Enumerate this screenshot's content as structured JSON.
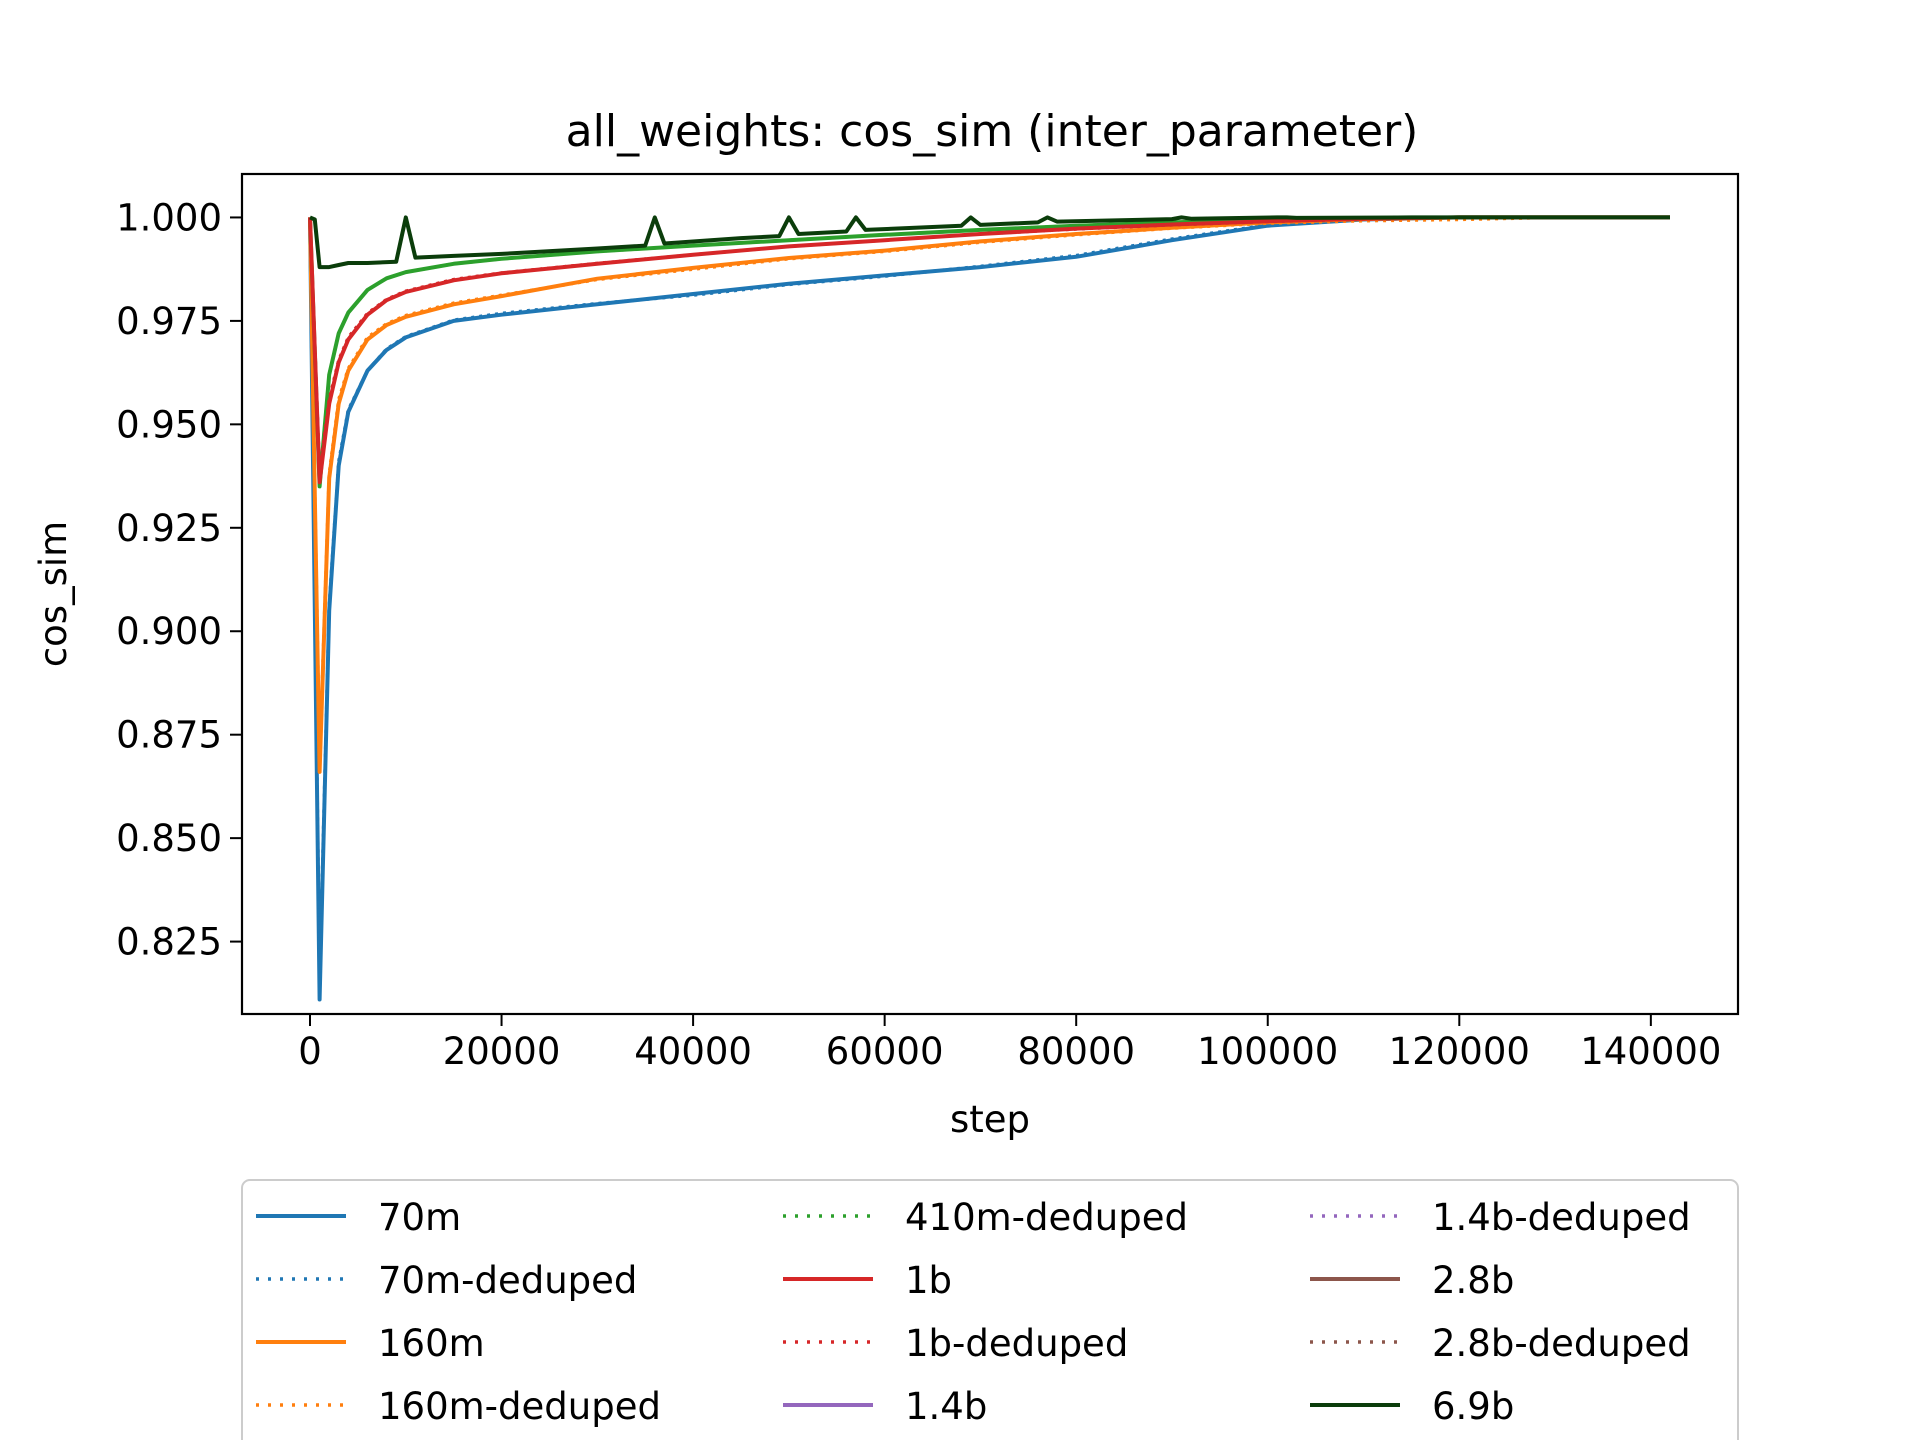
{
  "chart_data": {
    "type": "line",
    "title": "all_weights: cos_sim (inter_parameter)",
    "xlabel": "step",
    "ylabel": "cos_sim",
    "xlim": [
      -7100,
      149100
    ],
    "ylim": [
      0.8075,
      1.0105
    ],
    "x_ticks": [
      0,
      20000,
      40000,
      60000,
      80000,
      100000,
      120000,
      140000
    ],
    "y_ticks": [
      0.825,
      0.85,
      0.875,
      0.9,
      0.925,
      0.95,
      0.975,
      1.0
    ],
    "x_tick_labels": [
      "0",
      "20000",
      "40000",
      "60000",
      "80000",
      "100000",
      "120000",
      "140000"
    ],
    "y_tick_labels": [
      "0.825",
      "0.850",
      "0.875",
      "0.900",
      "0.925",
      "0.950",
      "0.975",
      "1.000"
    ],
    "grid": false,
    "legend_position": "below plot, 3 columns",
    "series": [
      {
        "name": "70m",
        "color": "#1f77b4",
        "style": "solid",
        "x": [
          0,
          1000,
          2000,
          3000,
          4000,
          6000,
          8000,
          10000,
          15000,
          20000,
          30000,
          40000,
          50000,
          60000,
          70000,
          80000,
          90000,
          100000,
          110000,
          120000,
          130000,
          142000
        ],
        "y": [
          1.0,
          0.811,
          0.905,
          0.94,
          0.953,
          0.963,
          0.968,
          0.971,
          0.975,
          0.9765,
          0.979,
          0.9815,
          0.984,
          0.986,
          0.988,
          0.9905,
          0.9945,
          0.998,
          0.9995,
          1.0,
          1.0,
          1.0
        ]
      },
      {
        "name": "70m-deduped",
        "color": "#1f77b4",
        "style": "dotted",
        "x": [
          0,
          1000,
          2000,
          3000,
          4000,
          6000,
          8000,
          10000,
          15000,
          20000,
          30000,
          40000,
          50000,
          60000,
          70000,
          80000,
          90000,
          100000,
          110000,
          120000,
          130000,
          142000
        ],
        "y": [
          1.0,
          0.815,
          0.906,
          0.941,
          0.9535,
          0.963,
          0.9682,
          0.9712,
          0.9752,
          0.9768,
          0.9792,
          0.9812,
          0.9838,
          0.9858,
          0.9882,
          0.9908,
          0.9948,
          0.9982,
          0.9996,
          1.0,
          1.0,
          1.0
        ]
      },
      {
        "name": "160m",
        "color": "#ff7f0e",
        "style": "solid",
        "x": [
          0,
          1000,
          2000,
          3000,
          4000,
          6000,
          8000,
          10000,
          15000,
          20000,
          30000,
          40000,
          50000,
          60000,
          70000,
          80000,
          90000,
          100000,
          110000,
          120000,
          130000,
          142000
        ],
        "y": [
          1.0,
          0.866,
          0.937,
          0.955,
          0.963,
          0.9705,
          0.974,
          0.976,
          0.979,
          0.981,
          0.9852,
          0.9878,
          0.9902,
          0.992,
          0.9942,
          0.996,
          0.9975,
          0.9988,
          0.9996,
          1.0,
          1.0,
          1.0
        ]
      },
      {
        "name": "160m-deduped",
        "color": "#ff7f0e",
        "style": "dotted",
        "x": [
          0,
          1000,
          2000,
          3000,
          4000,
          6000,
          8000,
          10000,
          15000,
          20000,
          30000,
          40000,
          50000,
          60000,
          70000,
          80000,
          90000,
          100000,
          110000,
          120000,
          130000,
          142000
        ],
        "y": [
          1.0,
          0.868,
          0.938,
          0.956,
          0.9635,
          0.971,
          0.9743,
          0.9763,
          0.9793,
          0.9812,
          0.985,
          0.9875,
          0.99,
          0.9918,
          0.994,
          0.9958,
          0.9974,
          0.9986,
          0.9992,
          0.9995,
          1.0,
          1.0
        ]
      },
      {
        "name": "410m-deduped",
        "color": "#2ca02c",
        "style": "dotted",
        "x": [
          0,
          1000,
          2000,
          3000,
          4000,
          6000,
          8000,
          10000,
          15000,
          20000,
          30000,
          40000,
          50000,
          60000,
          70000,
          80000,
          90000,
          100000,
          110000,
          120000,
          130000,
          142000
        ],
        "y": [
          1.0,
          0.935,
          0.962,
          0.972,
          0.977,
          0.9825,
          0.9853,
          0.9868,
          0.9888,
          0.99,
          0.9918,
          0.9932,
          0.9945,
          0.9958,
          0.997,
          0.998,
          0.9988,
          0.9994,
          0.9998,
          1.0,
          1.0,
          1.0
        ]
      },
      {
        "name": "410m",
        "color": "#2ca02c",
        "style": "solid",
        "x": [
          0,
          1000,
          2000,
          3000,
          4000,
          6000,
          8000,
          10000,
          15000,
          20000,
          30000,
          40000,
          50000,
          60000,
          70000,
          80000,
          90000,
          100000,
          110000,
          120000,
          130000,
          142000
        ],
        "y": [
          1.0,
          0.935,
          0.962,
          0.972,
          0.977,
          0.9825,
          0.9853,
          0.9868,
          0.9888,
          0.99,
          0.9918,
          0.9932,
          0.9945,
          0.9958,
          0.997,
          0.998,
          0.9988,
          0.9994,
          0.9998,
          1.0,
          1.0,
          1.0
        ]
      },
      {
        "name": "1b",
        "color": "#d62728",
        "style": "solid",
        "x": [
          0,
          1000,
          2000,
          3000,
          4000,
          6000,
          8000,
          10000,
          15000,
          20000,
          30000,
          40000,
          50000,
          60000,
          70000,
          80000,
          90000,
          100000,
          110000,
          120000,
          130000,
          142000
        ],
        "y": [
          1.0,
          0.936,
          0.955,
          0.965,
          0.9705,
          0.9765,
          0.98,
          0.982,
          0.9848,
          0.9865,
          0.9888,
          0.991,
          0.993,
          0.9945,
          0.996,
          0.9973,
          0.9983,
          0.9991,
          0.9997,
          1.0,
          1.0,
          1.0
        ]
      },
      {
        "name": "1b-deduped",
        "color": "#d62728",
        "style": "dotted",
        "x": [
          0,
          1000,
          2000,
          3000,
          4000,
          6000,
          8000,
          10000,
          15000,
          20000,
          30000,
          40000,
          50000,
          60000,
          70000,
          80000,
          90000,
          100000,
          110000,
          120000,
          130000,
          142000
        ],
        "y": [
          1.0,
          0.938,
          0.956,
          0.9655,
          0.971,
          0.9768,
          0.9802,
          0.9822,
          0.985,
          0.9866,
          0.9889,
          0.991,
          0.993,
          0.9945,
          0.996,
          0.9972,
          0.9982,
          0.999,
          0.9996,
          1.0,
          1.0,
          1.0
        ]
      },
      {
        "name": "6.9b",
        "color": "#0b3d0b",
        "style": "solid",
        "x": [
          0,
          500,
          1000,
          2000,
          3000,
          4000,
          6000,
          9000,
          10000,
          11000,
          15000,
          20000,
          30000,
          35000,
          36000,
          37000,
          45000,
          49000,
          50000,
          51000,
          56000,
          57000,
          58000,
          68000,
          69000,
          70000,
          76000,
          77000,
          78000,
          90000,
          91000,
          92000,
          101000,
          102000,
          103000,
          115000,
          130000,
          142000
        ],
        "y": [
          1.0,
          0.9995,
          0.988,
          0.988,
          0.9885,
          0.989,
          0.989,
          0.9893,
          1.0,
          0.9903,
          0.9907,
          0.9912,
          0.9925,
          0.9932,
          1.0,
          0.9937,
          0.995,
          0.9955,
          1.0,
          0.996,
          0.9966,
          1.0,
          0.997,
          0.998,
          1.0,
          0.9982,
          0.9988,
          1.0,
          0.999,
          0.9996,
          1.0,
          0.9997,
          1.0,
          1.0,
          0.9999,
          1.0,
          1.0,
          1.0
        ]
      }
    ],
    "legend_entries": [
      {
        "label": "70m",
        "color": "#1f77b4",
        "style": "solid"
      },
      {
        "label": "70m-deduped",
        "color": "#1f77b4",
        "style": "dotted"
      },
      {
        "label": "160m",
        "color": "#ff7f0e",
        "style": "solid"
      },
      {
        "label": "160m-deduped",
        "color": "#ff7f0e",
        "style": "dotted"
      },
      {
        "label": "410m-deduped",
        "color": "#2ca02c",
        "style": "dotted"
      },
      {
        "label": "1b",
        "color": "#d62728",
        "style": "solid"
      },
      {
        "label": "1b-deduped",
        "color": "#d62728",
        "style": "dotted"
      },
      {
        "label": "1.4b",
        "color": "#9467bd",
        "style": "solid"
      },
      {
        "label": "1.4b-deduped",
        "color": "#9467bd",
        "style": "dotted"
      },
      {
        "label": "2.8b",
        "color": "#8c564b",
        "style": "solid"
      },
      {
        "label": "2.8b-deduped",
        "color": "#8c564b",
        "style": "dotted"
      },
      {
        "label": "6.9b",
        "color": "#0b3d0b",
        "style": "solid"
      }
    ]
  }
}
